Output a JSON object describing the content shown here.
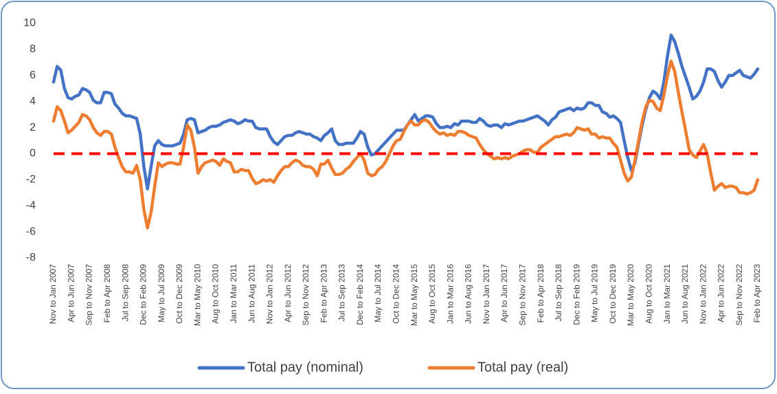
{
  "chart_data": {
    "type": "line",
    "categories": [
      "Nov to Jan 2007",
      null,
      null,
      null,
      null,
      "Apr to Jun 2007",
      null,
      null,
      null,
      null,
      "Sep to Nov 2007",
      null,
      null,
      null,
      null,
      "Feb to Apr 2008",
      null,
      null,
      null,
      null,
      "Jul to Sep 2008",
      null,
      null,
      null,
      null,
      "Dec to Feb 2009",
      null,
      null,
      null,
      null,
      "May to Jul 2009",
      null,
      null,
      null,
      null,
      "Oct to Dec 2009",
      null,
      null,
      null,
      null,
      "Mar to May 2010",
      null,
      null,
      null,
      null,
      "Aug to Oct 2010",
      null,
      null,
      null,
      null,
      "Jan to Mar 2011",
      null,
      null,
      null,
      null,
      "Jun to Aug 2011",
      null,
      null,
      null,
      null,
      "Nov to Jan 2012",
      null,
      null,
      null,
      null,
      "Apr to Jun 2012",
      null,
      null,
      null,
      null,
      "Sep to Nov 2012",
      null,
      null,
      null,
      null,
      "Feb to Apr 2013",
      null,
      null,
      null,
      null,
      "Jul to Sep 2013",
      null,
      null,
      null,
      null,
      "Dec to Feb 2014",
      null,
      null,
      null,
      null,
      "May to Jul 2014",
      null,
      null,
      null,
      null,
      "Oct to Dec 2014",
      null,
      null,
      null,
      null,
      "Mar to May 2015",
      null,
      null,
      null,
      null,
      "Aug to Oct 2015",
      null,
      null,
      null,
      null,
      "Jan to Mar 2016",
      null,
      null,
      null,
      null,
      "Jun to Aug 2016",
      null,
      null,
      null,
      null,
      "Nov to Jan 2017",
      null,
      null,
      null,
      null,
      "Apr to Jun 2017",
      null,
      null,
      null,
      null,
      "Sep to Nov 2017",
      null,
      null,
      null,
      null,
      "Feb to Apr 2018",
      null,
      null,
      null,
      null,
      "Jul to Sep 2018",
      null,
      null,
      null,
      null,
      "Dec to Feb 2019",
      null,
      null,
      null,
      null,
      "May to Jul 2019",
      null,
      null,
      null,
      null,
      "Oct to Dec 2019",
      null,
      null,
      null,
      null,
      "Mar to May 2020",
      null,
      null,
      null,
      null,
      "Aug to Oct 2020",
      null,
      null,
      null,
      null,
      "Jan to Mar 2021",
      null,
      null,
      null,
      null,
      "Jun to Aug 2021",
      null,
      null,
      null,
      null,
      "Nov to Jan 2022",
      null,
      null,
      null,
      null,
      "Apr to Jun 2022",
      null,
      null,
      null,
      null,
      "Sep to Nov 2022",
      null,
      null,
      null,
      null,
      "Feb to Apr 2023"
    ],
    "series": [
      {
        "name": "Total pay (nominal)",
        "color": "#4472c4",
        "values": [
          5.5,
          6.7,
          6.4,
          5.0,
          4.3,
          4.2,
          4.4,
          4.5,
          5.0,
          4.9,
          4.7,
          4.1,
          3.9,
          3.9,
          4.7,
          4.7,
          4.6,
          3.8,
          3.5,
          3.1,
          2.9,
          2.9,
          2.8,
          2.7,
          1.5,
          -1.0,
          -2.7,
          -1.0,
          0.6,
          1.0,
          0.7,
          0.6,
          0.6,
          0.6,
          0.7,
          0.8,
          1.5,
          2.6,
          2.7,
          2.6,
          1.6,
          1.7,
          1.8,
          2.0,
          2.1,
          2.1,
          2.2,
          2.4,
          2.5,
          2.6,
          2.5,
          2.3,
          2.4,
          2.6,
          2.5,
          2.5,
          2.0,
          1.9,
          1.9,
          1.9,
          1.3,
          0.9,
          0.7,
          1.0,
          1.3,
          1.4,
          1.4,
          1.6,
          1.7,
          1.6,
          1.5,
          1.5,
          1.3,
          1.2,
          1.0,
          1.4,
          1.6,
          1.9,
          1.0,
          0.7,
          0.7,
          0.8,
          0.8,
          0.8,
          1.2,
          1.7,
          1.5,
          0.5,
          -0.1,
          0.0,
          0.3,
          0.6,
          0.9,
          1.2,
          1.5,
          1.8,
          1.8,
          1.8,
          2.2,
          2.6,
          3.0,
          2.5,
          2.7,
          2.9,
          2.9,
          2.8,
          2.3,
          2.0,
          2.0,
          2.1,
          2.0,
          2.3,
          2.2,
          2.5,
          2.5,
          2.5,
          2.4,
          2.4,
          2.7,
          2.5,
          2.2,
          2.1,
          2.2,
          2.2,
          2.0,
          2.3,
          2.2,
          2.3,
          2.4,
          2.5,
          2.5,
          2.6,
          2.7,
          2.8,
          2.9,
          2.7,
          2.5,
          2.2,
          2.6,
          2.8,
          3.2,
          3.3,
          3.4,
          3.5,
          3.3,
          3.5,
          3.4,
          3.5,
          3.9,
          3.9,
          3.7,
          3.7,
          3.2,
          3.1,
          2.8,
          2.9,
          2.7,
          2.4,
          1.0,
          -0.3,
          -1.3,
          -0.7,
          0.8,
          2.2,
          3.4,
          4.3,
          4.8,
          4.6,
          4.2,
          5.5,
          7.5,
          9.1,
          8.6,
          7.7,
          6.7,
          5.9,
          5.1,
          4.2,
          4.4,
          4.8,
          5.5,
          6.5,
          6.5,
          6.3,
          5.6,
          5.1,
          5.5,
          6.0,
          6.0,
          6.2,
          6.4,
          6.0,
          5.9,
          5.8,
          6.1,
          6.5
        ]
      },
      {
        "name": "Total pay (real)",
        "color": "#ed7d31",
        "values": [
          2.5,
          3.6,
          3.3,
          2.5,
          1.6,
          1.8,
          2.1,
          2.4,
          3.0,
          2.9,
          2.6,
          2.0,
          1.6,
          1.4,
          1.7,
          1.7,
          1.5,
          0.5,
          -0.3,
          -1.0,
          -1.4,
          -1.4,
          -1.5,
          -0.9,
          -2.0,
          -4.3,
          -5.7,
          -4.5,
          -2.5,
          -0.7,
          -1.0,
          -0.8,
          -0.7,
          -0.7,
          -0.8,
          -0.8,
          0.5,
          2.2,
          1.8,
          0.5,
          -1.5,
          -1.0,
          -0.7,
          -0.6,
          -0.5,
          -0.6,
          -0.9,
          -0.4,
          -0.6,
          -0.7,
          -1.4,
          -1.4,
          -1.2,
          -1.3,
          -1.3,
          -1.9,
          -2.3,
          -2.2,
          -2.0,
          -2.1,
          -2.0,
          -2.2,
          -1.7,
          -1.3,
          -1.0,
          -1.0,
          -0.7,
          -0.5,
          -0.6,
          -0.9,
          -1.0,
          -1.0,
          -1.2,
          -1.7,
          -0.8,
          -0.8,
          -0.5,
          -1.1,
          -1.6,
          -1.6,
          -1.5,
          -1.2,
          -1.0,
          -0.6,
          -0.3,
          0.0,
          -0.5,
          -1.5,
          -1.7,
          -1.6,
          -1.2,
          -1.0,
          -0.6,
          0.0,
          0.6,
          1.0,
          1.1,
          1.7,
          2.2,
          2.5,
          2.2,
          2.2,
          2.5,
          2.6,
          2.4,
          2.0,
          1.7,
          1.5,
          1.6,
          1.4,
          1.5,
          1.4,
          1.7,
          1.7,
          1.6,
          1.4,
          1.3,
          1.2,
          0.7,
          0.3,
          0.0,
          -0.2,
          -0.4,
          -0.3,
          -0.4,
          -0.3,
          -0.4,
          -0.2,
          -0.1,
          0.0,
          0.2,
          0.3,
          0.3,
          0.1,
          0.1,
          0.5,
          0.7,
          0.9,
          1.1,
          1.3,
          1.3,
          1.4,
          1.5,
          1.4,
          1.6,
          2.0,
          1.9,
          1.8,
          1.9,
          1.5,
          1.5,
          1.2,
          1.3,
          1.2,
          1.2,
          0.8,
          0.5,
          -0.5,
          -1.5,
          -2.1,
          -1.8,
          -0.5,
          1.0,
          2.5,
          3.6,
          4.1,
          4.0,
          3.5,
          3.3,
          4.5,
          6.0,
          7.1,
          6.3,
          4.7,
          3.2,
          1.8,
          0.3,
          -0.1,
          -0.3,
          0.2,
          0.7,
          0.0,
          -1.5,
          -2.8,
          -2.5,
          -2.3,
          -2.6,
          -2.5,
          -2.5,
          -2.6,
          -3.0,
          -3.0,
          -3.1,
          -3.0,
          -2.8,
          -2.0
        ]
      }
    ],
    "ylim": [
      -8,
      10
    ],
    "yticks": [
      -8,
      -6,
      -4,
      -2,
      0,
      2,
      4,
      6,
      8,
      10
    ],
    "grid": false,
    "reference_line": {
      "value": 0,
      "color": "#ff0000"
    },
    "legend": "bottom"
  }
}
